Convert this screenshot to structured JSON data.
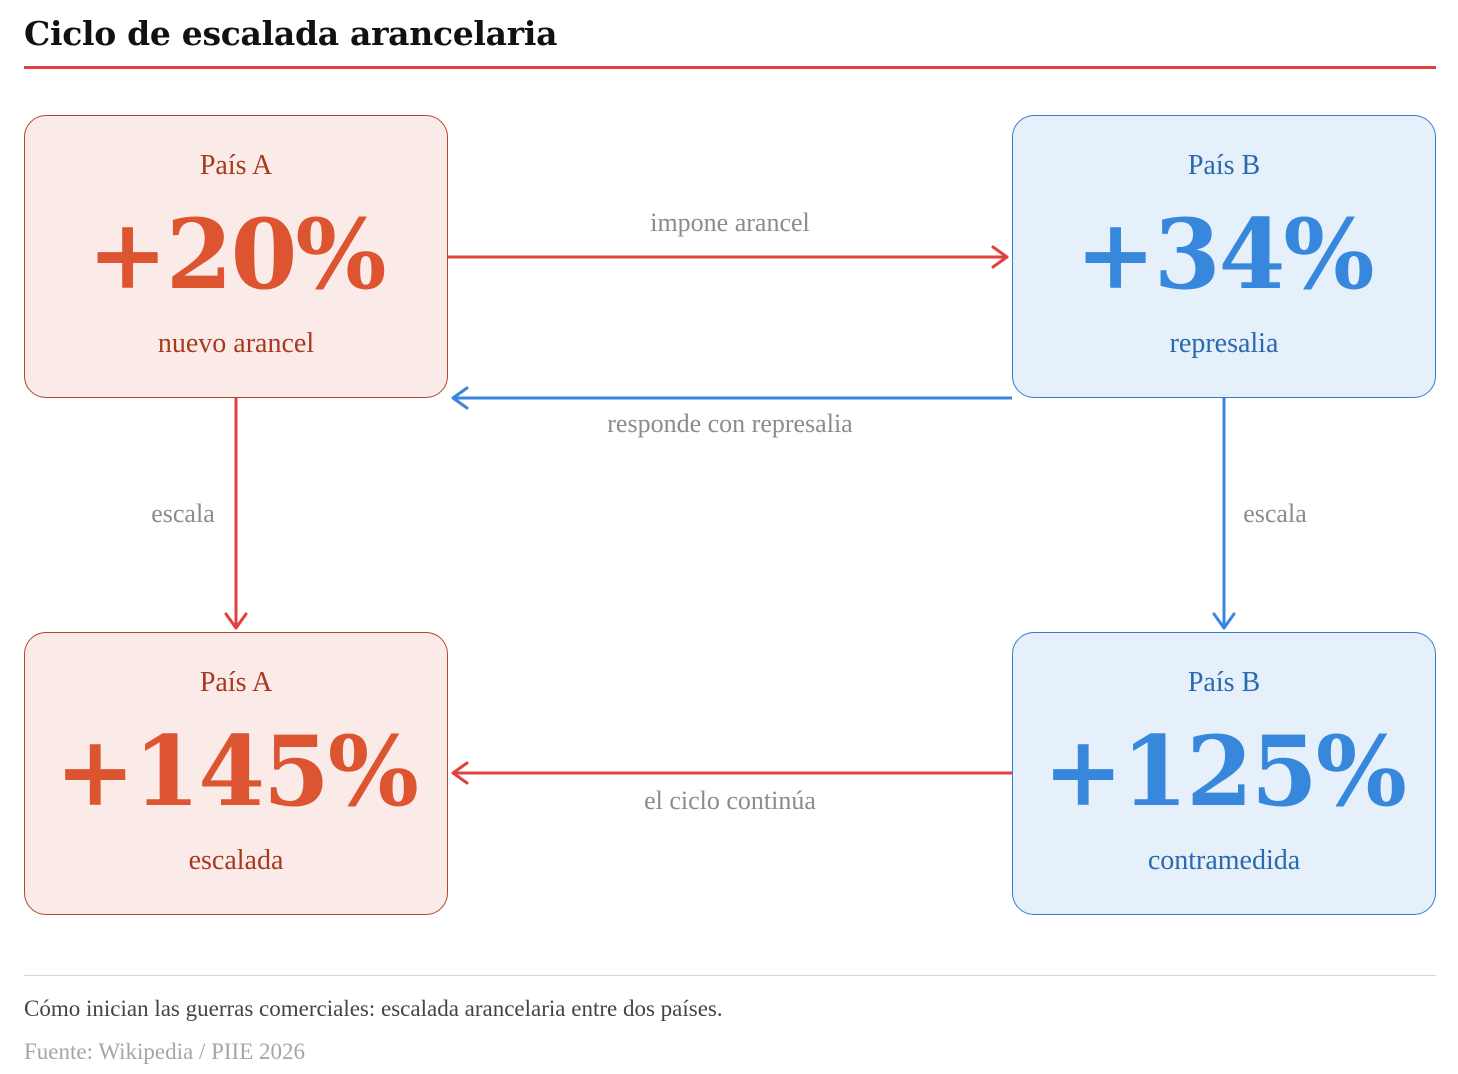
{
  "title": "Ciclo de escalada arancelaria",
  "colors": {
    "accent_red": "#e0413d",
    "country_a_fill": "#fbebe8",
    "country_a_border": "#b5452f",
    "country_a_text": "#a8391f",
    "country_a_value": "#dc5530",
    "country_b_fill": "#e5f0fb",
    "country_b_border": "#3a7bc8",
    "country_b_text": "#2a68b0",
    "country_b_value": "#3787dc",
    "arrow_red": "#e0413d",
    "arrow_blue": "#3a86dc",
    "label_gray": "#8c8c8c"
  },
  "nodes": {
    "top_left": {
      "country": "País A",
      "value": "+20%",
      "desc": "nuevo arancel"
    },
    "top_right": {
      "country": "País B",
      "value": "+34%",
      "desc": "represalia"
    },
    "bottom_left": {
      "country": "País A",
      "value": "+145%",
      "desc": "escalada"
    },
    "bottom_right": {
      "country": "País B",
      "value": "+125%",
      "desc": "contramedida"
    }
  },
  "edges": {
    "top_forward": "impone arancel",
    "top_back": "responde con represalia",
    "left_down": "escala",
    "right_down": "escala",
    "bottom_back": "el ciclo continúa"
  },
  "caption": "Cómo inician las guerras comerciales: escalada arancelaria entre dos países.",
  "source": "Fuente: Wikipedia / PIIE 2026"
}
